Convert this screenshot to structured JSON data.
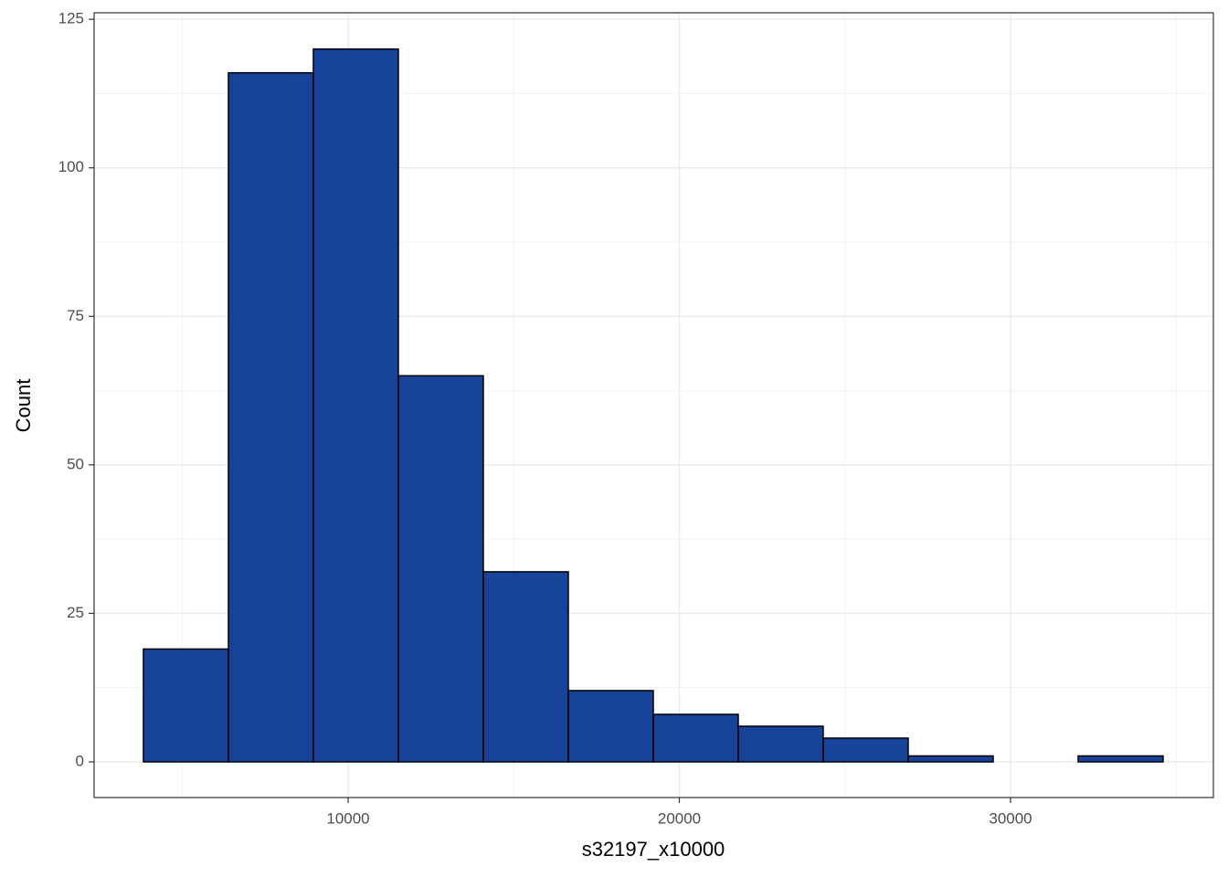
{
  "chart_data": {
    "type": "histogram",
    "x_label": "s32197_x10000",
    "y_label": "Count",
    "bins": [
      3820,
      6386,
      8951,
      11517,
      14082,
      16648,
      19213,
      21779,
      24344,
      26910,
      29475,
      32041,
      34606
    ],
    "values": [
      19,
      116,
      120,
      65,
      32,
      12,
      8,
      6,
      4,
      1,
      0,
      1
    ],
    "color": "#18439a",
    "edgecolor": "#000000",
    "xlim": [
      2331,
      36124
    ],
    "ylim": [
      -6.0,
      126.1
    ],
    "xticks": [
      10000,
      20000,
      30000
    ],
    "yticks": [
      0,
      25,
      50,
      75,
      100,
      125
    ],
    "grid": true
  }
}
